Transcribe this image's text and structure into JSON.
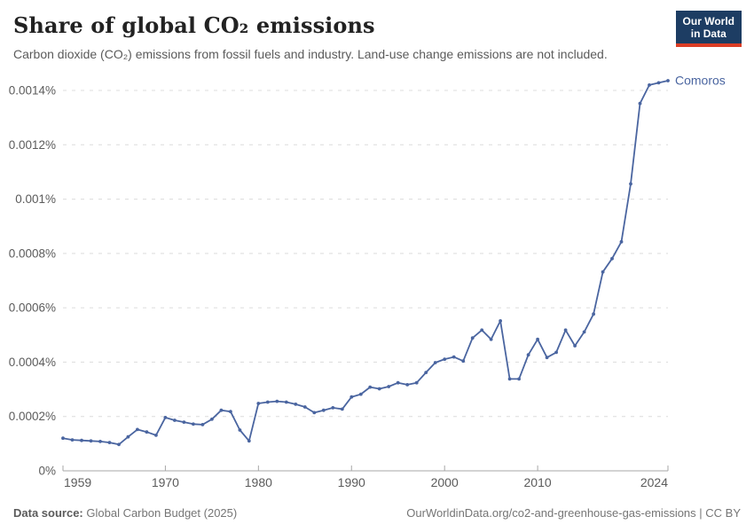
{
  "header": {
    "title": "Share of global CO₂ emissions",
    "subtitle": "Carbon dioxide (CO₂) emissions from fossil fuels and industry. Land-use change emissions are not included."
  },
  "logo": {
    "line1": "Our World",
    "line2": "in Data",
    "bg_color": "#1d3d63",
    "bar_color": "#dc3e26"
  },
  "chart_data": {
    "type": "line",
    "title": "Share of global CO₂ emissions",
    "xlabel": "",
    "ylabel": "",
    "grid": "horizontal-dashed",
    "legend_position": "end-of-line-label",
    "xlim": [
      1959,
      2024
    ],
    "ylim": [
      0,
      0.0014
    ],
    "x_ticks": [
      1959,
      1970,
      1980,
      1990,
      2000,
      2010,
      2024
    ],
    "y_ticks": [
      {
        "value": 0,
        "label": "0%"
      },
      {
        "value": 0.0002,
        "label": "0.0002%"
      },
      {
        "value": 0.0004,
        "label": "0.0004%"
      },
      {
        "value": 0.0006,
        "label": "0.0006%"
      },
      {
        "value": 0.0008,
        "label": "0.0008%"
      },
      {
        "value": 0.001,
        "label": "0.001%"
      },
      {
        "value": 0.0012,
        "label": "0.0012%"
      },
      {
        "value": 0.0014,
        "label": "0.0014%"
      }
    ],
    "series": [
      {
        "name": "Comoros",
        "color": "#4a65a0",
        "x": [
          1959,
          1960,
          1961,
          1962,
          1963,
          1964,
          1965,
          1966,
          1967,
          1968,
          1969,
          1970,
          1971,
          1972,
          1973,
          1974,
          1975,
          1976,
          1977,
          1978,
          1979,
          1980,
          1981,
          1982,
          1983,
          1984,
          1985,
          1986,
          1987,
          1988,
          1989,
          1990,
          1991,
          1992,
          1993,
          1994,
          1995,
          1996,
          1997,
          1998,
          1999,
          2000,
          2001,
          2002,
          2003,
          2004,
          2005,
          2006,
          2007,
          2008,
          2009,
          2010,
          2011,
          2012,
          2013,
          2014,
          2015,
          2016,
          2017,
          2018,
          2019,
          2020,
          2021,
          2022,
          2023,
          2024
        ],
        "values": [
          0.00012,
          0.000114,
          0.000112,
          0.00011,
          0.000108,
          0.000104,
          9.7e-05,
          0.000125,
          0.000152,
          0.000143,
          0.000131,
          0.000196,
          0.000186,
          0.000179,
          0.000172,
          0.00017,
          0.00019,
          0.000223,
          0.000218,
          0.00015,
          0.00011,
          0.000248,
          0.000253,
          0.000256,
          0.000253,
          0.000245,
          0.000235,
          0.000214,
          0.000223,
          0.000232,
          0.000227,
          0.000272,
          0.000282,
          0.000308,
          0.000302,
          0.00031,
          0.000324,
          0.000317,
          0.000324,
          0.000362,
          0.000398,
          0.000411,
          0.000419,
          0.000404,
          0.000489,
          0.000518,
          0.000484,
          0.000552,
          0.000338,
          0.000338,
          0.000427,
          0.000484,
          0.000417,
          0.000436,
          0.000518,
          0.00046,
          0.000511,
          0.000577,
          0.000732,
          0.000781,
          0.000843,
          0.001056,
          0.001352,
          0.00142,
          0.001428,
          0.001436
        ]
      }
    ]
  },
  "footer": {
    "source_label": "Data source:",
    "source_value": "Global Carbon Budget (2025)",
    "link": "OurWorldinData.org/co2-and-greenhouse-gas-emissions | CC BY"
  },
  "colors": {
    "line": "#4a65a0",
    "axis_text": "#5b5b5b",
    "grid": "#dcdcdc",
    "axis_line": "#a7a7a7"
  }
}
